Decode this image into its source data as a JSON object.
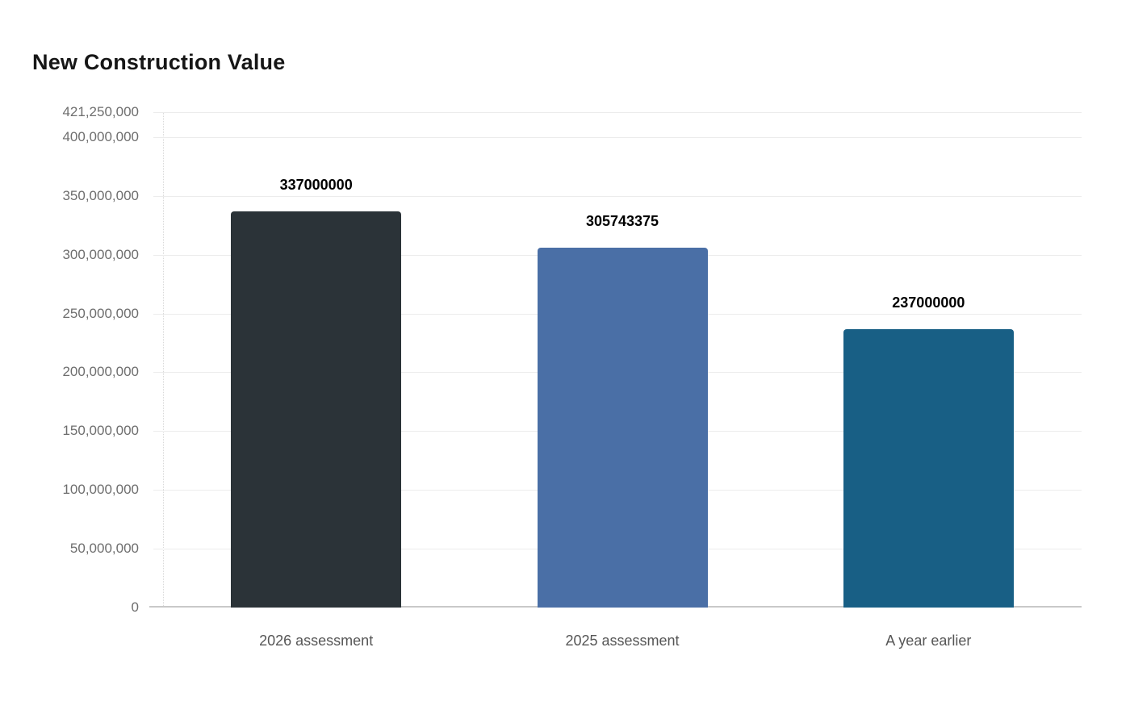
{
  "header": {
    "title": "New Construction Value"
  },
  "chart_data": {
    "type": "bar",
    "title": "New Construction Value",
    "categories": [
      "2026 assessment",
      "2025 assessment",
      "A year earlier"
    ],
    "values": [
      337000000,
      305743375,
      237000000
    ],
    "value_labels": [
      "337000000",
      "305743375",
      "237000000"
    ],
    "bar_colors": [
      "#2b3338",
      "#4a6fa6",
      "#185f85"
    ],
    "xlabel": "",
    "ylabel": "",
    "ylim": [
      0,
      421250000
    ],
    "yticks": [
      {
        "value": 421250000,
        "label": "421,250,000"
      },
      {
        "value": 400000000,
        "label": "400,000,000"
      },
      {
        "value": 350000000,
        "label": "350,000,000"
      },
      {
        "value": 300000000,
        "label": "300,000,000"
      },
      {
        "value": 250000000,
        "label": "250,000,000"
      },
      {
        "value": 200000000,
        "label": "200,000,000"
      },
      {
        "value": 150000000,
        "label": "150,000,000"
      },
      {
        "value": 100000000,
        "label": "100,000,000"
      },
      {
        "value": 50000000,
        "label": "50,000,000"
      },
      {
        "value": 0,
        "label": "0"
      }
    ],
    "grid": true,
    "legend": false,
    "colors": {
      "title_text": "#161616",
      "y_label_text": "#6e6e6e",
      "x_label_text": "#565656",
      "value_label_text": "#000000",
      "gridline": "#ececec",
      "baseline": "#c9c9c9",
      "axis_dotted": "#d9d9d9",
      "background": "#ffffff"
    }
  }
}
